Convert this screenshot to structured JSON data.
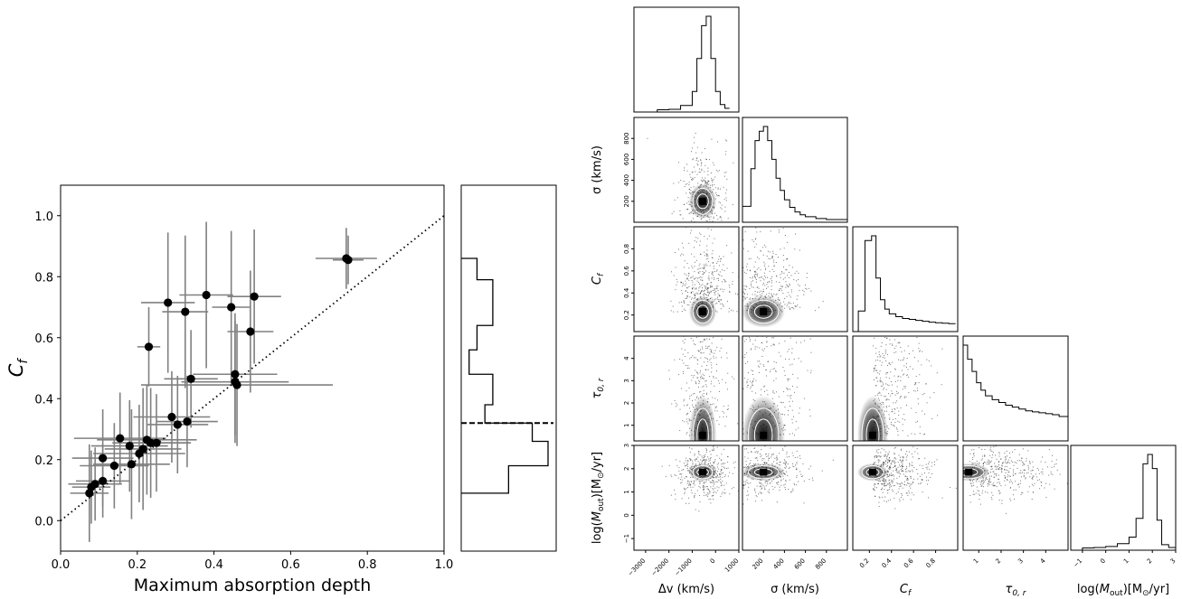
{
  "chart_data": [
    {
      "type": "scatter",
      "xlabel": "Maximum absorption depth",
      "ylabel": "C_f",
      "xlim": [
        0.0,
        1.0
      ],
      "ylim": [
        -0.1,
        1.1
      ],
      "xticks": [
        "0.0",
        "0.2",
        "0.4",
        "0.6",
        "0.8",
        "1.0"
      ],
      "yticks": [
        "0.0",
        "0.2",
        "0.4",
        "0.6",
        "0.8",
        "1.0"
      ],
      "xtick_values": [
        0.0,
        0.2,
        0.4,
        0.6,
        0.8,
        1.0
      ],
      "ytick_values": [
        0.0,
        0.2,
        0.4,
        0.6,
        0.8,
        1.0
      ],
      "reference_line": {
        "style": "dotted",
        "x": [
          0.0,
          1.0
        ],
        "y": [
          0.0,
          1.0
        ]
      },
      "points": [
        {
          "x": 0.075,
          "y": 0.09,
          "xerr": 0.05,
          "yerr": 0.16
        },
        {
          "x": 0.08,
          "y": 0.11,
          "xerr": 0.05,
          "yerr": 0.12
        },
        {
          "x": 0.09,
          "y": 0.12,
          "xerr": 0.07,
          "yerr": 0.12
        },
        {
          "x": 0.11,
          "y": 0.13,
          "xerr": 0.07,
          "yerr": 0.12
        },
        {
          "x": 0.11,
          "y": 0.205,
          "xerr": 0.08,
          "yerr": 0.16
        },
        {
          "x": 0.14,
          "y": 0.18,
          "xerr": 0.09,
          "yerr": 0.14
        },
        {
          "x": 0.155,
          "y": 0.27,
          "xerr": 0.12,
          "yerr": 0.15
        },
        {
          "x": 0.18,
          "y": 0.245,
          "xerr": 0.1,
          "yerr": 0.15
        },
        {
          "x": 0.185,
          "y": 0.185,
          "xerr": 0.1,
          "yerr": 0.18
        },
        {
          "x": 0.205,
          "y": 0.22,
          "xerr": 0.12,
          "yerr": 0.16
        },
        {
          "x": 0.215,
          "y": 0.235,
          "xerr": 0.1,
          "yerr": 0.2
        },
        {
          "x": 0.225,
          "y": 0.265,
          "xerr": 0.13,
          "yerr": 0.18
        },
        {
          "x": 0.235,
          "y": 0.255,
          "xerr": 0.1,
          "yerr": 0.18
        },
        {
          "x": 0.25,
          "y": 0.255,
          "xerr": 0.09,
          "yerr": 0.16
        },
        {
          "x": 0.23,
          "y": 0.57,
          "xerr": 0.03,
          "yerr": 0.13
        },
        {
          "x": 0.28,
          "y": 0.715,
          "xerr": 0.07,
          "yerr": 0.23
        },
        {
          "x": 0.29,
          "y": 0.34,
          "xerr": 0.1,
          "yerr": 0.15
        },
        {
          "x": 0.305,
          "y": 0.315,
          "xerr": 0.08,
          "yerr": 0.16
        },
        {
          "x": 0.325,
          "y": 0.685,
          "xerr": 0.06,
          "yerr": 0.25
        },
        {
          "x": 0.33,
          "y": 0.325,
          "xerr": 0.08,
          "yerr": 0.15
        },
        {
          "x": 0.34,
          "y": 0.465,
          "xerr": 0.07,
          "yerr": 0.16
        },
        {
          "x": 0.38,
          "y": 0.74,
          "xerr": 0.07,
          "yerr": 0.24
        },
        {
          "x": 0.445,
          "y": 0.7,
          "xerr": 0.05,
          "yerr": 0.25
        },
        {
          "x": 0.455,
          "y": 0.48,
          "xerr": 0.11,
          "yerr": 0.2
        },
        {
          "x": 0.455,
          "y": 0.455,
          "xerr": 0.14,
          "yerr": 0.2
        },
        {
          "x": 0.46,
          "y": 0.445,
          "xerr": 0.25,
          "yerr": 0.2
        },
        {
          "x": 0.495,
          "y": 0.62,
          "xerr": 0.06,
          "yerr": 0.2
        },
        {
          "x": 0.505,
          "y": 0.735,
          "xerr": 0.07,
          "yerr": 0.22
        },
        {
          "x": 0.745,
          "y": 0.86,
          "xerr": 0.08,
          "yerr": 0.1
        },
        {
          "x": 0.75,
          "y": 0.855,
          "xerr": 0.04,
          "yerr": 0.08
        }
      ]
    },
    {
      "type": "histogram",
      "orientation": "horizontal",
      "ylim": [
        -0.1,
        1.1
      ],
      "bin_edges": [
        0.09,
        0.18,
        0.26,
        0.32,
        0.38,
        0.48,
        0.56,
        0.64,
        0.71,
        0.79,
        0.86
      ],
      "counts": [
        6,
        11,
        9,
        3,
        4,
        1,
        2,
        4,
        4,
        2
      ],
      "dashed_line_y": 0.32
    },
    {
      "type": "corner",
      "parameters": [
        "Δv (km/s)",
        "σ (km/s)",
        "C_f",
        "τ_{0,r}",
        "log(Ṁ_out)[M_⊙/yr]"
      ],
      "param_labels": {
        "dv": "Δv (km/s)",
        "sigma": "σ (km/s)",
        "cf": "C",
        "cf_sub": "f",
        "tau": "τ",
        "tau_sub": "0, r",
        "mdot_pre": "log(",
        "mdot_m": "M",
        "mdot_sub": "out",
        "mdot_post": ")[M",
        "mdot_sun": "⊙",
        "mdot_end": "/yr]"
      },
      "ranges": {
        "dv": [
          -3500,
          1000
        ],
        "sigma": [
          0,
          1000
        ],
        "cf": [
          0.05,
          1.0
        ],
        "tau": [
          0.3,
          5.0
        ],
        "mdot": [
          -1.5,
          3.0
        ]
      },
      "ticks": {
        "dv": [
          "−3000",
          "−2000",
          "−1000",
          "0",
          "1000"
        ],
        "sigma": [
          "200",
          "400",
          "600",
          "800"
        ],
        "cf": [
          "0.2",
          "0.4",
          "0.6",
          "0.8"
        ],
        "tau": [
          "1",
          "2",
          "3",
          "4"
        ],
        "mdot": [
          "−1",
          "0",
          "1",
          "2",
          "3"
        ]
      },
      "tick_values": {
        "dv": [
          -3000,
          -2000,
          -1000,
          0,
          1000
        ],
        "sigma": [
          200,
          400,
          600,
          800
        ],
        "cf": [
          0.2,
          0.4,
          0.6,
          0.8
        ],
        "tau": [
          1,
          2,
          3,
          4
        ],
        "mdot": [
          -1,
          0,
          1,
          2,
          3
        ]
      },
      "marginal_histograms": {
        "dv": {
          "edges": [
            -2500,
            -2000,
            -1500,
            -1000,
            -800,
            -600,
            -400,
            -200,
            0,
            200,
            400,
            600
          ],
          "heights": [
            0.005,
            0.01,
            0.05,
            0.2,
            0.55,
            0.9,
            1.0,
            0.55,
            0.2,
            0.06,
            0.02
          ]
        },
        "sigma": {
          "edges": [
            0,
            80,
            120,
            160,
            200,
            240,
            280,
            320,
            360,
            400,
            450,
            500,
            550,
            600,
            700,
            800,
            1000
          ],
          "heights": [
            0.15,
            0.55,
            0.85,
            0.95,
            1.0,
            0.85,
            0.65,
            0.45,
            0.32,
            0.22,
            0.14,
            0.09,
            0.06,
            0.04,
            0.02,
            0.01
          ]
        },
        "cf": {
          "edges": [
            0.1,
            0.16,
            0.22,
            0.26,
            0.3,
            0.34,
            0.38,
            0.44,
            0.5,
            0.56,
            0.62,
            0.68,
            0.74,
            0.8,
            0.86,
            0.92,
            0.98
          ],
          "heights": [
            0.2,
            0.95,
            1.0,
            0.55,
            0.32,
            0.22,
            0.17,
            0.14,
            0.12,
            0.11,
            0.1,
            0.09,
            0.08,
            0.075,
            0.07,
            0.065
          ]
        },
        "tau": {
          "edges": [
            0.3,
            0.5,
            0.7,
            0.9,
            1.1,
            1.3,
            1.6,
            1.9,
            2.2,
            2.5,
            2.8,
            3.1,
            3.4,
            3.7,
            4.0,
            4.3,
            4.6,
            5.0
          ],
          "heights": [
            1.0,
            0.85,
            0.72,
            0.6,
            0.52,
            0.46,
            0.42,
            0.39,
            0.36,
            0.34,
            0.32,
            0.3,
            0.29,
            0.28,
            0.27,
            0.26,
            0.24
          ]
        },
        "mdot": {
          "edges": [
            -1.0,
            -0.5,
            0.0,
            0.5,
            1.0,
            1.3,
            1.6,
            1.8,
            2.0,
            2.2,
            2.4,
            2.7,
            3.0
          ],
          "heights": [
            0.005,
            0.01,
            0.02,
            0.05,
            0.12,
            0.32,
            0.9,
            1.0,
            0.85,
            0.3,
            0.04,
            0.01
          ]
        }
      },
      "peaks": {
        "dv": -550,
        "sigma": 200,
        "cf": 0.23,
        "tau": 0.55,
        "mdot": 1.85
      }
    }
  ]
}
